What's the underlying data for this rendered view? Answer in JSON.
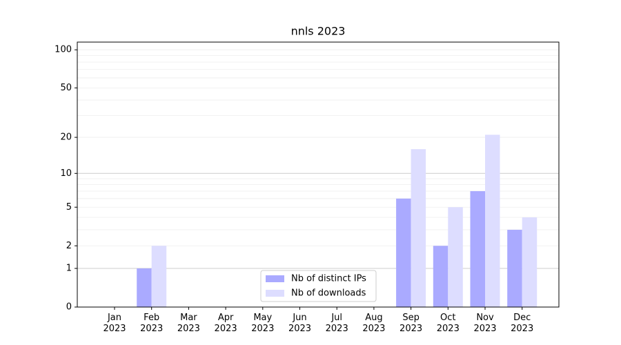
{
  "chart_data": {
    "type": "bar",
    "title": "nnls 2023",
    "scale": "log1p",
    "categories": [
      "Jan\n2023",
      "Feb\n2023",
      "Mar\n2023",
      "Apr\n2023",
      "May\n2023",
      "Jun\n2023",
      "Jul\n2023",
      "Aug\n2023",
      "Sep\n2023",
      "Oct\n2023",
      "Nov\n2023",
      "Dec\n2023"
    ],
    "series": [
      {
        "name": "Nb of distinct IPs",
        "color": "#aaaaff",
        "values": [
          0,
          1,
          0,
          0,
          0,
          0,
          0,
          0,
          6,
          2,
          7,
          3
        ]
      },
      {
        "name": "Nb of downloads",
        "color": "#ddddff",
        "values": [
          0,
          2,
          0,
          0,
          0,
          0,
          0,
          0,
          16,
          5,
          21,
          4
        ]
      }
    ],
    "ylim": [
      0,
      115
    ],
    "yticks": [
      0,
      1,
      2,
      5,
      10,
      20,
      50,
      100
    ],
    "minor_yticks": [
      3,
      4,
      6,
      7,
      8,
      9,
      30,
      40,
      60,
      70,
      80,
      90
    ],
    "grid": true,
    "legend": "lower center"
  }
}
